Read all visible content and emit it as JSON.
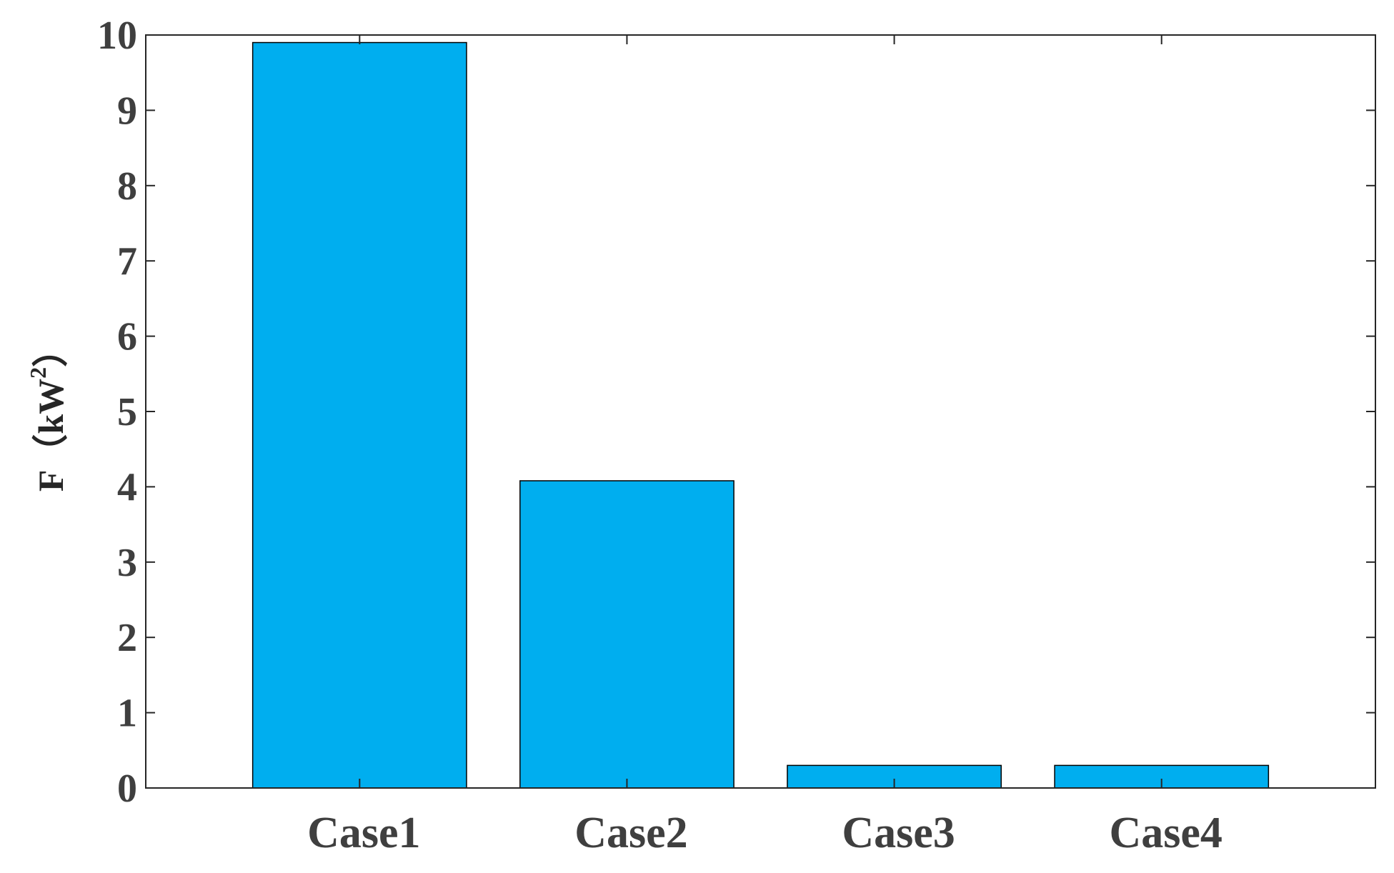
{
  "chart_data": {
    "type": "bar",
    "title": "",
    "xlabel": "",
    "ylabel": "F（kW",
    "ylabel_superscript": "2",
    "ylabel_close": "）",
    "categories": [
      "Case1",
      "Case2",
      "Case3",
      "Case4"
    ],
    "values": [
      9.9,
      4.08,
      0.3,
      0.3
    ],
    "ylim": [
      0,
      10
    ],
    "xlim": [
      0.2,
      4.8
    ],
    "yticks": [
      "0",
      "1",
      "2",
      "3",
      "4",
      "5",
      "6",
      "7",
      "8",
      "9",
      "10"
    ],
    "grid": false,
    "legend": "none",
    "bar_color": "#00aeef",
    "edge_color": "#000000",
    "text_color": "#3f3f3f"
  }
}
